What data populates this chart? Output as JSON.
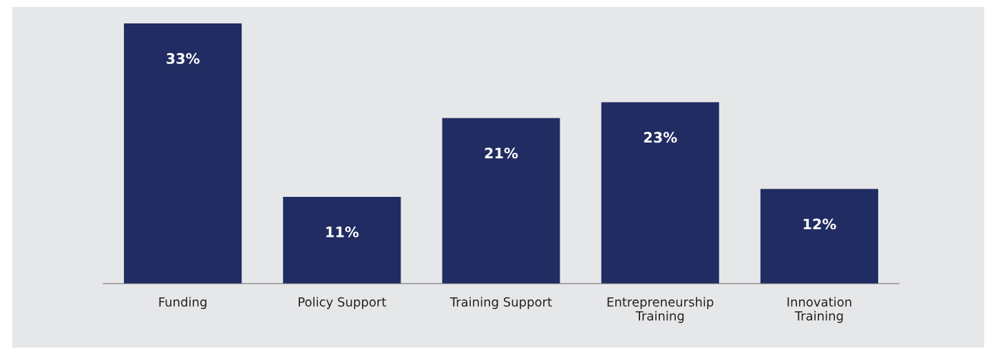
{
  "chart_data": {
    "type": "bar",
    "categories": [
      "Funding",
      "Policy Support",
      "Training Support",
      "Entrepreneurship\nTraining",
      "Innovation\nTraining"
    ],
    "values": [
      33,
      11,
      21,
      23,
      12
    ],
    "value_labels": [
      "33%",
      "11%",
      "21%",
      "23%",
      "12%"
    ],
    "color": "#212c62"
  }
}
